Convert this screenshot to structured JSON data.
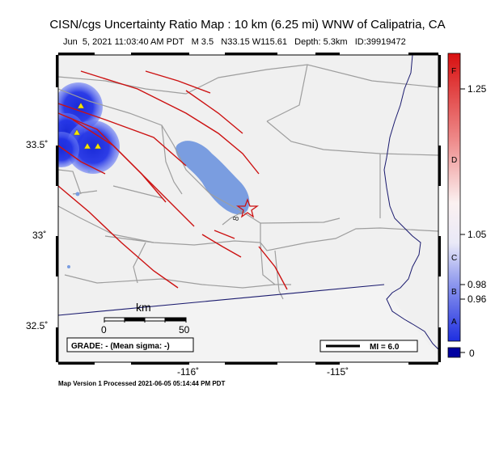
{
  "header": {
    "title": "CISN/cgs Uncertainty Ratio Map : 10 km (6.25 mi) WNW of Calipatria, CA",
    "subtitle": "Jun  5, 2021 11:03:40 AM PDT   M 3.5   N33.15 W115.61   Depth: 5.3km   ID:39919472"
  },
  "axes": {
    "lat_ticks": [
      "33.5˚",
      "33˚",
      "32.5˚"
    ],
    "lon_ticks": [
      "-116˚",
      "-115˚"
    ]
  },
  "map": {
    "scale_label": "km",
    "scale_start": "0",
    "scale_end": "50",
    "grade_box": "GRADE: - (Mean sigma: -)",
    "mi_legend": "MI = 6.0",
    "road_label": "8",
    "colors": {
      "water": "#7a9de0",
      "land": "#f0f0f0",
      "fault": "#cc1111",
      "road": "#9e9e9e",
      "border": "#1a1a6e"
    }
  },
  "colorbar": {
    "letters": [
      "F",
      "D",
      "C",
      "B",
      "A"
    ],
    "values": [
      "1.25",
      "1.05",
      "0.98",
      "0.96",
      "0"
    ]
  },
  "footer": "Map Version 1 Processed 2021-06-05 05:14:44 PM PDT"
}
